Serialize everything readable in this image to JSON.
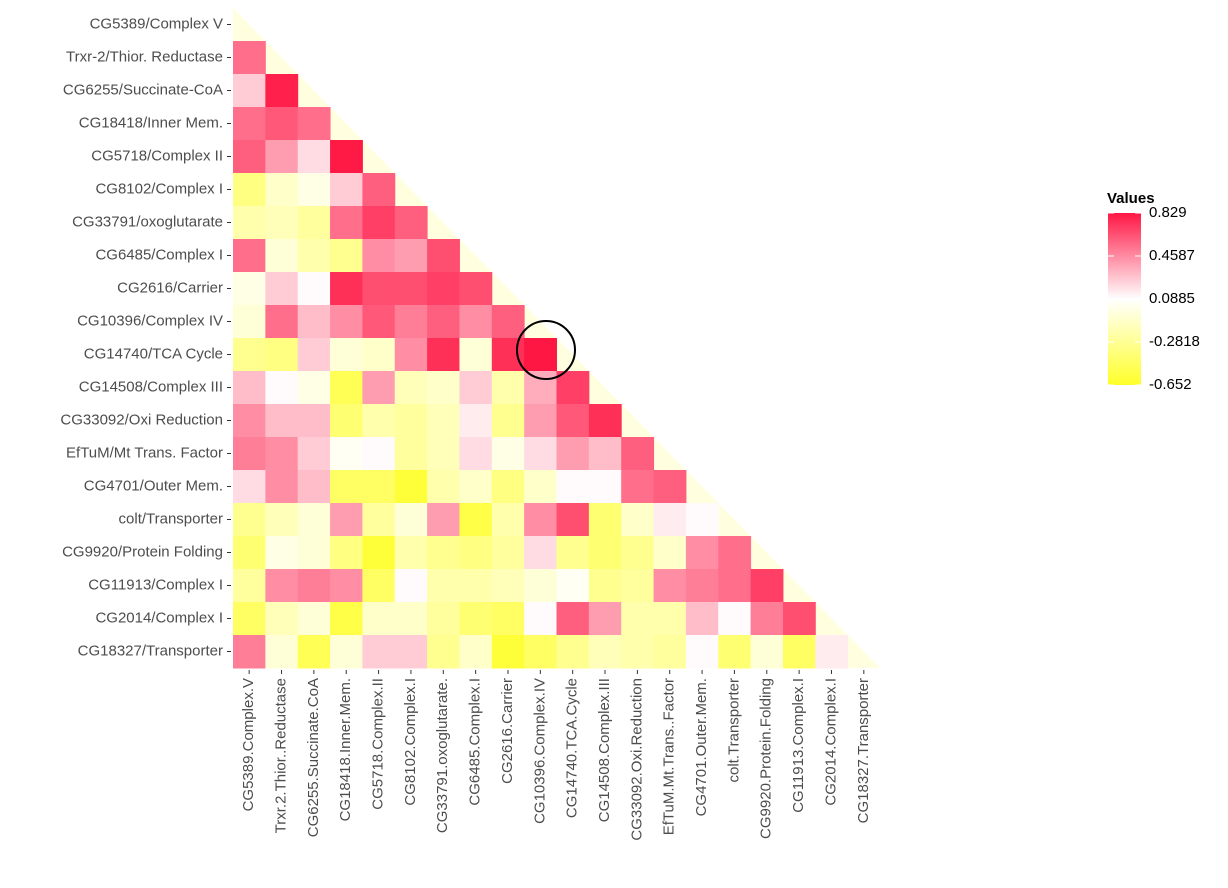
{
  "chart_data": {
    "type": "heatmap",
    "legend_title": "Values",
    "rows": [
      "CG5389/Complex V",
      "Trxr-2/Thior. Reductase",
      "CG6255/Succinate-CoA",
      "CG18418/Inner Mem.",
      "CG5718/Complex II",
      "CG8102/Complex I",
      "CG33791/oxoglutarate",
      "CG6485/Complex I",
      "CG2616/Carrier",
      "CG10396/Complex IV",
      "CG14740/TCA Cycle",
      "CG14508/Complex III",
      "CG33092/Oxi Reduction",
      "EfTuM/Mt Trans. Factor",
      "CG4701/Outer Mem.",
      "colt/Transporter",
      "CG9920/Protein Folding",
      "CG11913/Complex I",
      "CG2014/Complex I",
      "CG18327/Transporter"
    ],
    "columns": [
      "CG5389.Complex.V",
      "Trxr.2.Thior..Reductase",
      "CG6255.Succinate.CoA",
      "CG18418.Inner.Mem.",
      "CG5718.Complex.II",
      "CG8102.Complex.I",
      "CG33791.oxoglutarate.",
      "CG6485.Complex.I",
      "CG2616.Carrier",
      "CG10396.Complex.IV",
      "CG14740.TCA.Cycle",
      "CG14508.Complex.III",
      "CG33092.Oxi.Reduction",
      "EfTuM.Mt.Trans..Factor",
      "CG4701.Outer.Mem.",
      "colt.Transporter",
      "CG9920.Protein.Folding",
      "CG11913.Complex.I",
      "CG2014.Complex.I",
      "CG18327.Transporter"
    ],
    "values": [
      [
        null,
        null,
        null,
        null,
        null,
        null,
        null,
        null,
        null,
        null,
        null,
        null,
        null,
        null,
        null,
        null,
        null,
        null,
        null,
        null
      ],
      [
        0.55,
        null,
        null,
        null,
        null,
        null,
        null,
        null,
        null,
        null,
        null,
        null,
        null,
        null,
        null,
        null,
        null,
        null,
        null,
        null
      ],
      [
        0.25,
        0.8,
        null,
        null,
        null,
        null,
        null,
        null,
        null,
        null,
        null,
        null,
        null,
        null,
        null,
        null,
        null,
        null,
        null,
        null
      ],
      [
        0.55,
        0.62,
        0.55,
        null,
        null,
        null,
        null,
        null,
        null,
        null,
        null,
        null,
        null,
        null,
        null,
        null,
        null,
        null,
        null,
        null
      ],
      [
        0.6,
        0.4,
        0.2,
        0.82,
        null,
        null,
        null,
        null,
        null,
        null,
        null,
        null,
        null,
        null,
        null,
        null,
        null,
        null,
        null,
        null
      ],
      [
        -0.35,
        -0.1,
        0.0,
        0.25,
        0.6,
        null,
        null,
        null,
        null,
        null,
        null,
        null,
        null,
        null,
        null,
        null,
        null,
        null,
        null,
        null
      ],
      [
        -0.2,
        -0.15,
        -0.25,
        0.55,
        0.7,
        0.6,
        null,
        null,
        null,
        null,
        null,
        null,
        null,
        null,
        null,
        null,
        null,
        null,
        null,
        null
      ],
      [
        0.55,
        -0.05,
        -0.2,
        -0.3,
        0.45,
        0.4,
        0.65,
        null,
        null,
        null,
        null,
        null,
        null,
        null,
        null,
        null,
        null,
        null,
        null,
        null
      ],
      [
        0.0,
        0.25,
        0.1,
        0.75,
        0.65,
        0.65,
        0.7,
        0.65,
        null,
        null,
        null,
        null,
        null,
        null,
        null,
        null,
        null,
        null,
        null,
        null
      ],
      [
        -0.05,
        0.55,
        0.3,
        0.45,
        0.62,
        0.5,
        0.6,
        0.45,
        0.6,
        null,
        null,
        null,
        null,
        null,
        null,
        null,
        null,
        null,
        null,
        null
      ],
      [
        -0.3,
        -0.35,
        0.25,
        -0.05,
        -0.1,
        0.45,
        0.75,
        -0.05,
        0.75,
        0.829,
        null,
        null,
        null,
        null,
        null,
        null,
        null,
        null,
        null,
        null
      ],
      [
        0.3,
        0.1,
        0.0,
        -0.5,
        0.4,
        -0.15,
        -0.1,
        0.25,
        -0.2,
        0.35,
        0.7,
        null,
        null,
        null,
        null,
        null,
        null,
        null,
        null,
        null
      ],
      [
        0.45,
        0.3,
        0.3,
        -0.4,
        -0.2,
        -0.25,
        -0.15,
        0.15,
        -0.3,
        0.4,
        0.62,
        0.75,
        null,
        null,
        null,
        null,
        null,
        null,
        null,
        null
      ],
      [
        0.5,
        0.45,
        0.25,
        0.05,
        0.1,
        -0.25,
        -0.15,
        0.2,
        0.0,
        0.2,
        0.4,
        0.3,
        0.6,
        null,
        null,
        null,
        null,
        null,
        null,
        null
      ],
      [
        0.2,
        0.45,
        0.3,
        -0.45,
        -0.45,
        -0.6,
        -0.2,
        -0.1,
        -0.35,
        -0.1,
        0.1,
        0.1,
        0.55,
        0.6,
        null,
        null,
        null,
        null,
        null,
        null
      ],
      [
        -0.3,
        -0.15,
        -0.05,
        0.4,
        -0.25,
        -0.05,
        0.4,
        -0.55,
        -0.2,
        0.45,
        0.65,
        -0.4,
        -0.1,
        0.15,
        0.1,
        null,
        null,
        null,
        null,
        null
      ],
      [
        -0.4,
        0.0,
        -0.05,
        -0.35,
        -0.6,
        -0.2,
        -0.3,
        -0.35,
        -0.25,
        0.2,
        -0.3,
        -0.4,
        -0.3,
        -0.1,
        0.45,
        0.55,
        null,
        null,
        null,
        null
      ],
      [
        -0.25,
        0.45,
        0.5,
        0.45,
        -0.45,
        0.1,
        -0.2,
        -0.2,
        -0.15,
        -0.05,
        0.05,
        -0.3,
        -0.25,
        0.45,
        0.5,
        0.55,
        0.7,
        null,
        null,
        null
      ],
      [
        -0.45,
        -0.15,
        -0.05,
        -0.55,
        -0.1,
        -0.1,
        -0.25,
        -0.4,
        -0.45,
        0.1,
        0.6,
        0.4,
        -0.2,
        -0.2,
        0.3,
        0.1,
        0.5,
        0.65,
        null,
        null
      ],
      [
        0.5,
        -0.05,
        -0.5,
        -0.05,
        0.25,
        0.25,
        -0.3,
        -0.1,
        -0.6,
        -0.45,
        -0.3,
        -0.15,
        -0.2,
        -0.25,
        0.1,
        -0.4,
        -0.05,
        -0.45,
        0.15,
        null
      ]
    ],
    "colors": [
      "#ffff2a",
      "#ffffff",
      "#ff1744"
    ],
    "clim": [
      -0.652,
      0.829
    ],
    "cticks": [
      0.829,
      0.4587,
      0.0885,
      -0.2818,
      -0.652
    ]
  }
}
